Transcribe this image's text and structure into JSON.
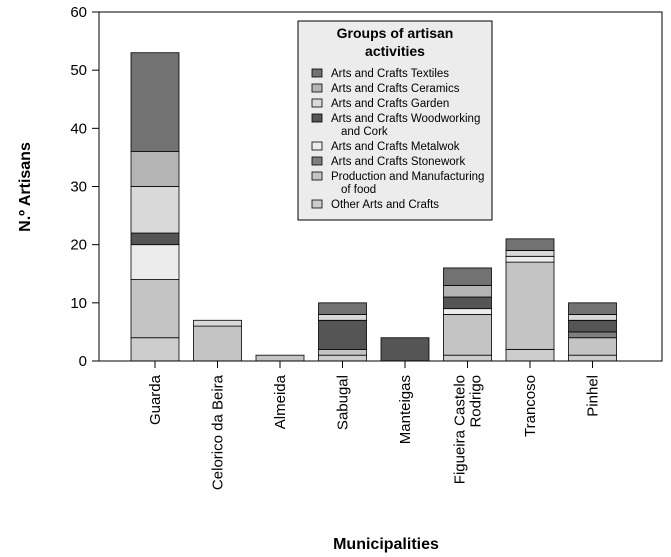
{
  "chart_data": {
    "type": "bar",
    "stacked": true,
    "xlabel": "Municipalities",
    "ylabel": "N.º Artisans",
    "ylim": [
      0,
      60
    ],
    "yticks": [
      0,
      10,
      20,
      30,
      40,
      50,
      60
    ],
    "grid": false,
    "legend": {
      "title_lines": [
        "Groups of artisan",
        "activities"
      ],
      "placement": "top-center"
    },
    "categories": [
      [
        "Guarda"
      ],
      [
        "Celorico da Beira"
      ],
      [
        "Almeida"
      ],
      [
        "Sabugal"
      ],
      [
        "Manteigas"
      ],
      [
        "Figueira Castelo",
        "Rodrigo"
      ],
      [
        "Trancoso"
      ],
      [
        "Pinhel"
      ]
    ],
    "series": [
      {
        "name_lines": [
          "Other Arts and Crafts"
        ],
        "color": "#cdcdcd",
        "values": [
          4,
          0,
          0,
          1,
          0,
          1,
          2,
          1
        ]
      },
      {
        "name_lines": [
          "Production and Manufacturing",
          "of food"
        ],
        "color": "#c4c4c4",
        "values": [
          10,
          6,
          1,
          1,
          0,
          7,
          15,
          3
        ]
      },
      {
        "name_lines": [
          "Arts and Crafts Stonework"
        ],
        "color": "#7f7f7f",
        "values": [
          0,
          0,
          0,
          0,
          0,
          0,
          0,
          1
        ]
      },
      {
        "name_lines": [
          "Arts and Crafts Metalwok"
        ],
        "color": "#ececec",
        "values": [
          6,
          0,
          0,
          0,
          0,
          1,
          1,
          0
        ]
      },
      {
        "name_lines": [
          "Arts and Crafts Woodworking",
          "and Cork"
        ],
        "color": "#555555",
        "values": [
          2,
          0,
          0,
          5,
          4,
          2,
          0,
          2
        ]
      },
      {
        "name_lines": [
          "Arts and Crafts Garden"
        ],
        "color": "#d9d9d9",
        "values": [
          8,
          1,
          0,
          1,
          0,
          0,
          1,
          1
        ]
      },
      {
        "name_lines": [
          "Arts and Crafts Ceramics"
        ],
        "color": "#b4b4b4",
        "values": [
          6,
          0,
          0,
          0,
          0,
          2,
          0,
          0
        ]
      },
      {
        "name_lines": [
          "Arts and Crafts Textiles"
        ],
        "color": "#727272",
        "values": [
          17,
          0,
          0,
          2,
          0,
          3,
          2,
          2
        ]
      }
    ]
  }
}
